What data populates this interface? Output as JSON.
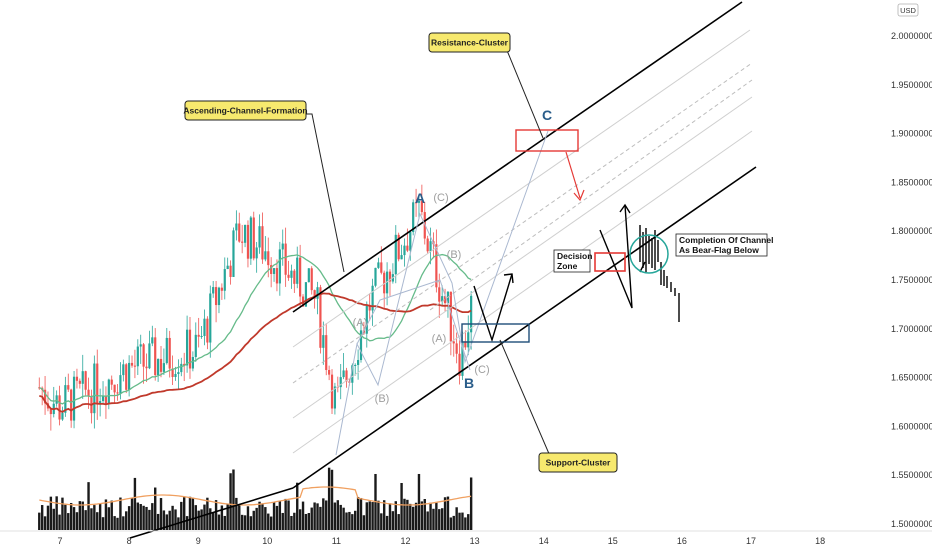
{
  "currency_badge": "USD",
  "chart_data": {
    "type": "candlestick",
    "x_ticks": [
      "7",
      "8",
      "9",
      "10",
      "11",
      "12",
      "13",
      "14",
      "15",
      "16",
      "17",
      "18"
    ],
    "price_ticks": [
      "2.00000000",
      "1.95000000",
      "1.90000000",
      "1.85000000",
      "1.80000000",
      "1.75000000",
      "1.70000000",
      "1.65000000",
      "1.60000000",
      "1.55000000",
      "1.50000000"
    ],
    "ylim": [
      1.5,
      2.0
    ],
    "annotations": {
      "ascending_channel": "Ascending-Channel-Formation",
      "resistance_cluster": "Resistance-Cluster",
      "support_cluster": "Support-Cluster",
      "decision_zone_line1": "Decision",
      "decision_zone_line2": "Zone",
      "completion_line1": "Completion Of Channel",
      "completion_line2": "As Bear-Flag Below"
    },
    "waves": {
      "A": "A",
      "B": "B",
      "C": "C",
      "sub_A": "(A)",
      "sub_B": "(B)",
      "sub_C": "(C)"
    },
    "colors": {
      "up": "#26a69a",
      "down": "#ef5350",
      "volume": "#1a1a1a",
      "ma_green": "#66bb8a",
      "ma_red": "#c0392b",
      "ma_orange": "#f0a060",
      "channel": "#000000",
      "zone_red": "#e53935",
      "zone_blue": "#1f4e79",
      "callout": "#f7e96e"
    },
    "ohlc_daily": [
      {
        "day": "6.7",
        "close": 1.64
      },
      {
        "day": "7",
        "close": 1.62
      },
      {
        "day": "8",
        "close": 1.66
      },
      {
        "day": "9",
        "close": 1.68
      },
      {
        "day": "9.6",
        "close": 1.8
      },
      {
        "day": "10",
        "close": 1.78
      },
      {
        "day": "10.7",
        "close": 1.73
      },
      {
        "day": "11",
        "close": 1.62
      },
      {
        "day": "11.5",
        "close": 1.73
      },
      {
        "day": "12.2",
        "close": 1.82
      },
      {
        "day": "12.8",
        "close": 1.67
      },
      {
        "day": "13",
        "close": 1.74
      }
    ]
  }
}
